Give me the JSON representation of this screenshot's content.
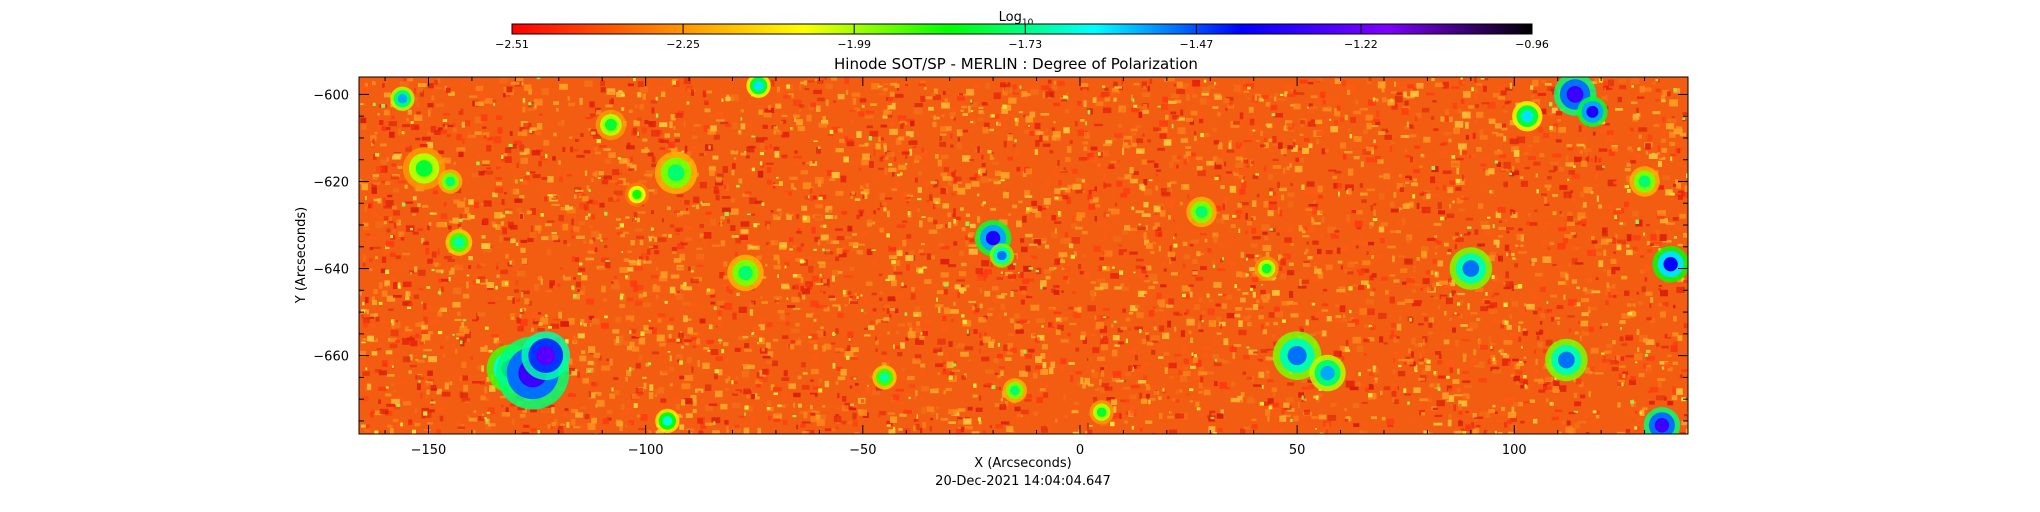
{
  "chart_data": {
    "type": "heatmap",
    "title": "Hinode SOT/SP - MERLIN : Degree of Polarization",
    "xlabel": "X (Arcseconds)",
    "ylabel": "Y (Arcseconds)",
    "timestamp": "20-Dec-2021 14:04:04.647",
    "xlim": [
      -166,
      140
    ],
    "ylim": [
      -678,
      -596
    ],
    "xticks": [
      -150,
      -100,
      -50,
      0,
      50,
      100
    ],
    "xtick_labels": [
      "−150",
      "−100",
      "−50",
      "0",
      "50",
      "100"
    ],
    "yticks": [
      -600,
      -620,
      -640,
      -660
    ],
    "ytick_labels": [
      "−600",
      "−620",
      "−640",
      "−660"
    ],
    "grid": false,
    "colorbar": {
      "label_base": "Log",
      "label_sub": "10",
      "min": -2.51,
      "max": -0.96,
      "tick_values": [
        -2.51,
        -2.25,
        -1.99,
        -1.73,
        -1.47,
        -1.22,
        -0.96
      ],
      "tick_labels": [
        "−2.51",
        "−2.25",
        "−1.99",
        "−1.73",
        "−1.47",
        "−1.22",
        "−0.96"
      ],
      "colormap": [
        "#ff0000",
        "#ff8000",
        "#ffff00",
        "#00ff00",
        "#00ffff",
        "#0000ff",
        "#7f00ff",
        "#000000"
      ],
      "position": "top"
    },
    "background_level": -2.35,
    "features": [
      {
        "x": -156,
        "y": -601,
        "r": 2.0,
        "value": -1.55
      },
      {
        "x": -151,
        "y": -617,
        "r": 3.5,
        "value": -1.8
      },
      {
        "x": -145,
        "y": -620,
        "r": 2.0,
        "value": -1.75
      },
      {
        "x": -143,
        "y": -634,
        "r": 2.2,
        "value": -1.7
      },
      {
        "x": -131,
        "y": -663,
        "r": 4.0,
        "value": -1.45
      },
      {
        "x": -126,
        "y": -664,
        "r": 6.0,
        "value": -1.3
      },
      {
        "x": -123,
        "y": -660,
        "r": 4.0,
        "value": -1.25
      },
      {
        "x": -108,
        "y": -607,
        "r": 2.5,
        "value": -1.8
      },
      {
        "x": -102,
        "y": -623,
        "r": 2.0,
        "value": -1.85
      },
      {
        "x": -93,
        "y": -618,
        "r": 3.5,
        "value": -1.75
      },
      {
        "x": -77,
        "y": -641,
        "r": 3.0,
        "value": -1.75
      },
      {
        "x": -74,
        "y": -598,
        "r": 2.0,
        "value": -1.6
      },
      {
        "x": -95,
        "y": -675,
        "r": 2.0,
        "value": -1.65
      },
      {
        "x": -45,
        "y": -665,
        "r": 2.0,
        "value": -1.7
      },
      {
        "x": -20,
        "y": -633,
        "r": 3.0,
        "value": -1.35
      },
      {
        "x": -18,
        "y": -637,
        "r": 2.0,
        "value": -1.5
      },
      {
        "x": -15,
        "y": -668,
        "r": 2.0,
        "value": -1.75
      },
      {
        "x": 5,
        "y": -673,
        "r": 2.0,
        "value": -1.8
      },
      {
        "x": 28,
        "y": -627,
        "r": 2.5,
        "value": -1.75
      },
      {
        "x": 43,
        "y": -640,
        "r": 2.0,
        "value": -1.8
      },
      {
        "x": 50,
        "y": -660,
        "r": 4.0,
        "value": -1.5
      },
      {
        "x": 57,
        "y": -664,
        "r": 3.0,
        "value": -1.55
      },
      {
        "x": 90,
        "y": -640,
        "r": 3.5,
        "value": -1.5
      },
      {
        "x": 103,
        "y": -605,
        "r": 2.5,
        "value": -1.6
      },
      {
        "x": 112,
        "y": -661,
        "r": 3.5,
        "value": -1.5
      },
      {
        "x": 114,
        "y": -600,
        "r": 3.5,
        "value": -1.3
      },
      {
        "x": 118,
        "y": -604,
        "r": 2.5,
        "value": -1.35
      },
      {
        "x": 130,
        "y": -620,
        "r": 2.5,
        "value": -1.75
      },
      {
        "x": 136,
        "y": -639,
        "r": 3.0,
        "value": -1.4
      },
      {
        "x": 134,
        "y": -676,
        "r": 3.0,
        "value": -1.3
      }
    ]
  }
}
